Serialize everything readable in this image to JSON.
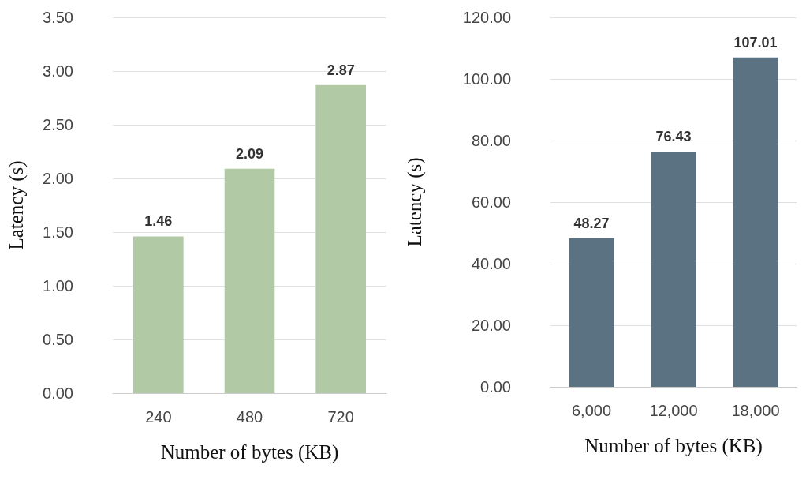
{
  "chart_data": [
    {
      "type": "bar",
      "xlabel": "Number of bytes (KB)",
      "ylabel": "Latency (s)",
      "categories": [
        "240",
        "480",
        "720"
      ],
      "values": [
        1.46,
        2.09,
        2.87
      ],
      "color": "#b1c9a5",
      "data_labels": true,
      "grid": "y",
      "ylim": [
        0,
        3.5
      ],
      "yticks": [
        {
          "value": 0,
          "label": "0.00"
        },
        {
          "value": 0.5,
          "label": "0.50"
        },
        {
          "value": 1,
          "label": "1.00"
        },
        {
          "value": 1.5,
          "label": "1.50"
        },
        {
          "value": 2,
          "label": "2.00"
        },
        {
          "value": 2.5,
          "label": "2.50"
        },
        {
          "value": 3,
          "label": "3.00"
        },
        {
          "value": 3.5,
          "label": "3.50"
        }
      ]
    },
    {
      "type": "bar",
      "xlabel": "Number of bytes (KB)",
      "ylabel": "Latency (s)",
      "categories": [
        "6,000",
        "12,000",
        "18,000"
      ],
      "values": [
        48.27,
        76.43,
        107.01
      ],
      "color": "#5b7282",
      "data_labels": true,
      "grid": "y",
      "ylim": [
        0,
        120
      ],
      "yticks": [
        {
          "value": 0,
          "label": "0.00"
        },
        {
          "value": 20,
          "label": "20.00"
        },
        {
          "value": 40,
          "label": "40.00"
        },
        {
          "value": 60,
          "label": "60.00"
        },
        {
          "value": 80,
          "label": "80.00"
        },
        {
          "value": 100,
          "label": "100.00"
        },
        {
          "value": 120,
          "label": "120.00"
        }
      ]
    }
  ]
}
